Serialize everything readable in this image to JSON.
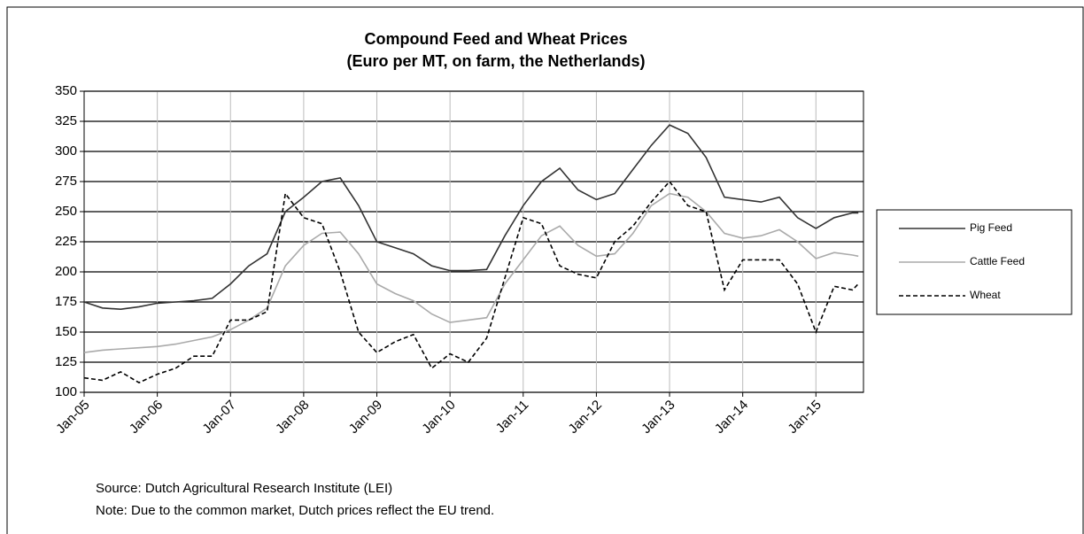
{
  "chart_data": {
    "type": "line",
    "title": "Compound Feed and Wheat Prices",
    "subtitle": "(Euro per MT, on farm, the Netherlands)",
    "notes": [
      "Source: Dutch Agricultural Research Institute (LEI)",
      "Note: Due to the common market, Dutch prices reflect the EU trend."
    ],
    "x": [
      2005,
      2005.25,
      2005.5,
      2005.75,
      2006,
      2006.25,
      2006.5,
      2006.75,
      2007,
      2007.25,
      2007.5,
      2007.75,
      2008,
      2008.25,
      2008.5,
      2008.75,
      2009,
      2009.25,
      2009.5,
      2009.75,
      2010,
      2010.25,
      2010.5,
      2010.75,
      2011,
      2011.25,
      2011.5,
      2011.75,
      2012,
      2012.25,
      2012.5,
      2012.75,
      2013,
      2013.25,
      2013.5,
      2013.75,
      2014,
      2014.25,
      2014.5,
      2014.75,
      2015,
      2015.25,
      2015.5,
      2015.58
    ],
    "xlim": [
      2005,
      2015.65
    ],
    "xticks": [
      {
        "value": 2005,
        "label": "Jan-05"
      },
      {
        "value": 2006,
        "label": "Jan-06"
      },
      {
        "value": 2007,
        "label": "Jan-07"
      },
      {
        "value": 2008,
        "label": "Jan-08"
      },
      {
        "value": 2009,
        "label": "Jan-09"
      },
      {
        "value": 2010,
        "label": "Jan-10"
      },
      {
        "value": 2011,
        "label": "Jan-11"
      },
      {
        "value": 2012,
        "label": "Jan-12"
      },
      {
        "value": 2013,
        "label": "Jan-13"
      },
      {
        "value": 2014,
        "label": "Jan-14"
      },
      {
        "value": 2015,
        "label": "Jan-15"
      }
    ],
    "ylim": [
      100,
      350
    ],
    "yticks": [
      100,
      125,
      150,
      175,
      200,
      225,
      250,
      275,
      300,
      325,
      350
    ],
    "grid": true,
    "legend": "right",
    "series": [
      {
        "name": "Pig Feed",
        "color": "#333333",
        "values": [
          175,
          170,
          169,
          171,
          174,
          175,
          176,
          178,
          190,
          205,
          215,
          250,
          262,
          275,
          278,
          255,
          225,
          220,
          215,
          205,
          201,
          201,
          202,
          230,
          255,
          275,
          286,
          268,
          260,
          265,
          285,
          305,
          322,
          315,
          295,
          262,
          260,
          258,
          262,
          245,
          236,
          245,
          249,
          249
        ]
      },
      {
        "name": "Cattle Feed",
        "color": "#aaaaaa",
        "values": [
          133,
          135,
          136,
          137,
          138,
          140,
          143,
          146,
          152,
          160,
          170,
          205,
          222,
          232,
          233,
          215,
          190,
          182,
          176,
          165,
          158,
          160,
          162,
          190,
          210,
          230,
          238,
          222,
          213,
          215,
          232,
          255,
          265,
          262,
          250,
          232,
          228,
          230,
          235,
          225,
          211,
          216,
          214,
          213
        ]
      },
      {
        "name": "Wheat",
        "color": "#000000",
        "dash": "5,3",
        "values": [
          112,
          110,
          117,
          108,
          115,
          120,
          130,
          130,
          160,
          160,
          167,
          265,
          245,
          240,
          200,
          150,
          133,
          142,
          148,
          120,
          132,
          125,
          145,
          195,
          245,
          240,
          205,
          198,
          195,
          225,
          238,
          258,
          275,
          255,
          250,
          185,
          210,
          210,
          210,
          190,
          150,
          188,
          185,
          190
        ]
      }
    ]
  }
}
